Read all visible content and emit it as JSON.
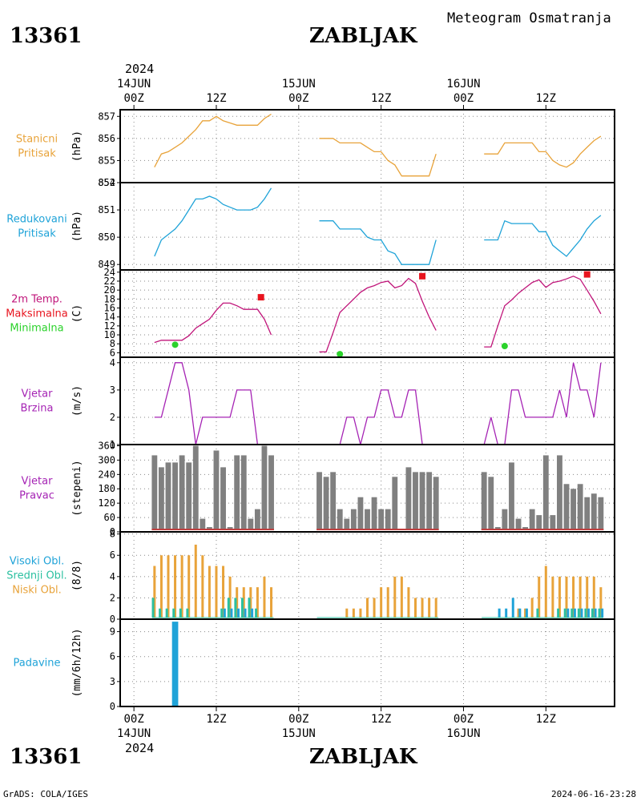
{
  "header": {
    "station_id": "13361",
    "station_name": "ZABLJAK",
    "subtitle": "Meteogram Osmatranja",
    "year": "2024"
  },
  "footer": {
    "credit": "GrADS: COLA/IGES",
    "timestamp": "2024-06-16-23:28"
  },
  "time_axis": {
    "top": [
      {
        "label": "14JUN",
        "sub": "00Z"
      },
      {
        "label": "",
        "sub": "12Z"
      },
      {
        "label": "15JUN",
        "sub": "00Z"
      },
      {
        "label": "",
        "sub": "12Z"
      },
      {
        "label": "16JUN",
        "sub": "00Z"
      },
      {
        "label": "",
        "sub": "12Z"
      }
    ],
    "bottom": [
      {
        "label": "00Z",
        "sub": "14JUN"
      },
      {
        "label": "12Z",
        "sub": ""
      },
      {
        "label": "00Z",
        "sub": "15JUN"
      },
      {
        "label": "12Z",
        "sub": ""
      },
      {
        "label": "00Z",
        "sub": "16JUN"
      },
      {
        "label": "12Z",
        "sub": ""
      }
    ],
    "x_range_hours": [
      -2,
      70
    ]
  },
  "colors": {
    "pressure": "#e8a33a",
    "reduced": "#1fa3d8",
    "temp": "#c0157a",
    "max": "#e8141e",
    "min": "#2bd22b",
    "wind": "#a523b4",
    "winddir": "#808080",
    "winddir_base": "#c04040",
    "cloud_low": "#e8a33a",
    "cloud_mid": "#2bc0a0",
    "cloud_high": "#1fa3d8",
    "precip": "#1fa3d8"
  },
  "chart_data": [
    {
      "type": "line",
      "panel": "station_pressure",
      "labels": [
        "Stanicni",
        "Pritisak"
      ],
      "ylabel": "(hPa)",
      "ylim": [
        854,
        857.3
      ],
      "yticks": [
        "857",
        "856",
        "855",
        "854"
      ],
      "series": [
        {
          "x": [
            3,
            4,
            5,
            6,
            7,
            8,
            9,
            10,
            11,
            12,
            13,
            14,
            15,
            16,
            17,
            18,
            19,
            20
          ],
          "y": [
            854.7,
            855.3,
            855.4,
            855.6,
            855.8,
            856.1,
            856.4,
            856.8,
            856.8,
            857.0,
            856.8,
            856.7,
            856.6,
            856.6,
            856.6,
            856.6,
            856.9,
            857.1
          ]
        },
        {
          "x": [
            27,
            28,
            29,
            30,
            31,
            32,
            33,
            34,
            35,
            36,
            37,
            38,
            39,
            40,
            41,
            42,
            43,
            44
          ],
          "y": [
            856.0,
            856.0,
            856.0,
            855.8,
            855.8,
            855.8,
            855.8,
            855.6,
            855.4,
            855.4,
            855.0,
            854.8,
            854.3,
            854.3,
            854.3,
            854.3,
            854.3,
            855.3
          ]
        },
        {
          "x": [
            51,
            52,
            53,
            54,
            55,
            56,
            57,
            58,
            59,
            60,
            61,
            62,
            63,
            64,
            65,
            66,
            67,
            68
          ],
          "y": [
            855.3,
            855.3,
            855.3,
            855.8,
            855.8,
            855.8,
            855.8,
            855.8,
            855.4,
            855.4,
            855.0,
            854.8,
            854.7,
            854.9,
            855.3,
            855.6,
            855.9,
            856.1
          ]
        }
      ]
    },
    {
      "type": "line",
      "panel": "reduced_pressure",
      "labels": [
        "Redukovani",
        "Pritisak"
      ],
      "ylabel": "(hPa)",
      "ylim": [
        848.8,
        852
      ],
      "yticks": [
        "852",
        "851",
        "850",
        "849"
      ],
      "series": [
        {
          "x": [
            3,
            4,
            5,
            6,
            7,
            8,
            9,
            10,
            11,
            12,
            13,
            14,
            15,
            16,
            17,
            18,
            19,
            20
          ],
          "y": [
            849.3,
            849.9,
            850.1,
            850.3,
            850.6,
            851.0,
            851.4,
            851.4,
            851.5,
            851.4,
            851.2,
            851.1,
            851.0,
            851.0,
            851.0,
            851.1,
            851.4,
            851.8
          ]
        },
        {
          "x": [
            27,
            28,
            29,
            30,
            31,
            32,
            33,
            34,
            35,
            36,
            37,
            38,
            39,
            40,
            41,
            42,
            43,
            44
          ],
          "y": [
            850.6,
            850.6,
            850.6,
            850.3,
            850.3,
            850.3,
            850.3,
            850.0,
            849.9,
            849.9,
            849.5,
            849.4,
            849.0,
            849.0,
            849.0,
            849.0,
            849.0,
            849.9
          ]
        },
        {
          "x": [
            51,
            52,
            53,
            54,
            55,
            56,
            57,
            58,
            59,
            60,
            61,
            62,
            63,
            64,
            65,
            66,
            67,
            68
          ],
          "y": [
            849.9,
            849.9,
            849.9,
            850.6,
            850.5,
            850.5,
            850.5,
            850.5,
            850.2,
            850.2,
            849.7,
            849.5,
            849.3,
            849.6,
            849.9,
            850.3,
            850.6,
            850.8
          ]
        }
      ]
    },
    {
      "type": "line",
      "panel": "temperature_2m",
      "labels": [
        "2m Temp.",
        "Maksimalna",
        "Minimalna"
      ],
      "ylabel": "(C)",
      "ylim": [
        5,
        24.5
      ],
      "yticks": [
        "24",
        "22",
        "20",
        "18",
        "16",
        "14",
        "12",
        "10",
        "8",
        "6"
      ],
      "series": [
        {
          "name": "2m Temp.",
          "x": [
            3,
            4,
            5,
            6,
            7,
            8,
            9,
            10,
            11,
            12,
            13,
            14,
            15,
            16,
            17,
            18,
            19,
            20
          ],
          "y": [
            8.3,
            8.8,
            8.8,
            8.8,
            8.8,
            9.8,
            11.5,
            12.5,
            13.5,
            15.5,
            17.1,
            17.1,
            16.5,
            15.7,
            15.7,
            15.7,
            13.5,
            10.0
          ]
        },
        {
          "name": "2m Temp.",
          "x": [
            27,
            28,
            29,
            30,
            31,
            32,
            33,
            34,
            35,
            36,
            37,
            38,
            39,
            40,
            41,
            42,
            43,
            44
          ],
          "y": [
            6.2,
            6.2,
            10.5,
            15.0,
            16.5,
            18.0,
            19.5,
            20.5,
            21.0,
            21.7,
            22.0,
            20.5,
            21.0,
            22.6,
            21.5,
            17.5,
            14.0,
            11.0
          ]
        },
        {
          "name": "2m Temp.",
          "x": [
            51,
            52,
            53,
            54,
            55,
            56,
            57,
            58,
            59,
            60,
            61,
            62,
            63,
            64,
            65,
            66,
            67,
            68
          ],
          "y": [
            7.3,
            7.3,
            12.0,
            16.5,
            17.8,
            19.3,
            20.5,
            21.7,
            22.3,
            20.6,
            21.7,
            22.0,
            22.5,
            23.1,
            22.4,
            20.0,
            17.5,
            14.7
          ]
        }
      ],
      "max_points": [
        {
          "x": 18.5,
          "y": 18.4
        },
        {
          "x": 42,
          "y": 23.1
        },
        {
          "x": 66,
          "y": 23.5
        }
      ],
      "min_points": [
        {
          "x": 6,
          "y": 7.8
        },
        {
          "x": 30,
          "y": 5.7
        },
        {
          "x": 54,
          "y": 7.5
        }
      ]
    },
    {
      "type": "line",
      "panel": "wind_speed",
      "labels": [
        "Vjetar",
        "Brzina"
      ],
      "ylabel": "(m/s)",
      "ylim": [
        1,
        4.2
      ],
      "yticks": [
        "4",
        "3",
        "2",
        "1"
      ],
      "series": [
        {
          "x": [
            3,
            4,
            5,
            6,
            7,
            8,
            9,
            10,
            11,
            12,
            13,
            14,
            15,
            16,
            17,
            18,
            19,
            20
          ],
          "y": [
            2,
            2,
            3,
            4,
            4,
            3,
            1,
            2,
            2,
            2,
            2,
            2,
            3,
            3,
            3,
            1,
            1,
            1
          ]
        },
        {
          "x": [
            27,
            28,
            29,
            30,
            31,
            32,
            33,
            34,
            35,
            36,
            37,
            38,
            39,
            40,
            41,
            42,
            43,
            44
          ],
          "y": [
            1,
            1,
            1,
            1,
            2,
            2,
            1,
            2,
            2,
            3,
            3,
            2,
            2,
            3,
            3,
            1,
            1,
            1
          ]
        },
        {
          "x": [
            51,
            52,
            53,
            54,
            55,
            56,
            57,
            58,
            59,
            60,
            61,
            62,
            63,
            64,
            65,
            66,
            67,
            68
          ],
          "y": [
            1,
            2,
            1,
            1,
            3,
            3,
            2,
            2,
            2,
            2,
            2,
            3,
            2,
            4,
            3,
            3,
            2,
            4
          ]
        }
      ]
    },
    {
      "type": "bar",
      "panel": "wind_direction",
      "labels": [
        "Vjetar",
        "Pravac"
      ],
      "ylabel": "(stepeni)",
      "ylim": [
        0,
        365
      ],
      "yticks": [
        "360",
        "300",
        "240",
        "180",
        "120",
        "60",
        "0"
      ],
      "x": [
        3,
        4,
        5,
        6,
        7,
        8,
        9,
        10,
        11,
        12,
        13,
        14,
        15,
        16,
        17,
        18,
        19,
        20,
        27,
        28,
        29,
        30,
        31,
        32,
        33,
        34,
        35,
        36,
        37,
        38,
        39,
        40,
        41,
        42,
        43,
        44,
        51,
        52,
        53,
        54,
        55,
        56,
        57,
        58,
        59,
        60,
        61,
        62,
        63,
        64,
        65,
        66,
        67,
        68
      ],
      "values": [
        320,
        270,
        290,
        290,
        320,
        290,
        360,
        55,
        20,
        340,
        270,
        20,
        320,
        320,
        55,
        95,
        360,
        320,
        250,
        230,
        250,
        95,
        55,
        95,
        145,
        95,
        145,
        95,
        95,
        230,
        0,
        270,
        250,
        250,
        250,
        230,
        250,
        230,
        20,
        95,
        290,
        55,
        20,
        95,
        70,
        320,
        70,
        320,
        200,
        180,
        200,
        145,
        160,
        145
      ]
    },
    {
      "type": "bar",
      "panel": "cloud_cover",
      "labels": [
        "Visoki Obl.",
        "Srednji Obl.",
        "Niski Obl."
      ],
      "ylabel": "(8/8)",
      "ylim": [
        0,
        8.2
      ],
      "yticks": [
        "8",
        "6",
        "4",
        "2",
        "0"
      ],
      "x": [
        3,
        4,
        5,
        6,
        7,
        8,
        9,
        10,
        11,
        12,
        13,
        14,
        15,
        16,
        17,
        18,
        19,
        20,
        27,
        28,
        29,
        30,
        31,
        32,
        33,
        34,
        35,
        36,
        37,
        38,
        39,
        40,
        41,
        42,
        43,
        44,
        51,
        52,
        53,
        54,
        55,
        56,
        57,
        58,
        59,
        60,
        61,
        62,
        63,
        64,
        65,
        66,
        67,
        68
      ],
      "series": [
        {
          "name": "Niski Obl.",
          "values": [
            5,
            6,
            6,
            6,
            6,
            6,
            7,
            6,
            5,
            5,
            5,
            4,
            3,
            3,
            3,
            3,
            4,
            3,
            0,
            0,
            0,
            0,
            1,
            1,
            1,
            2,
            2,
            3,
            3,
            4,
            4,
            3,
            2,
            2,
            2,
            2,
            0,
            0,
            0,
            0,
            0,
            1,
            1,
            2,
            4,
            5,
            4,
            4,
            4,
            4,
            4,
            4,
            4,
            3
          ]
        },
        {
          "name": "Srednji Obl.",
          "values": [
            2,
            1,
            1,
            1,
            1,
            1,
            0,
            0,
            0,
            0,
            1,
            2,
            2,
            2,
            2,
            1,
            0,
            0,
            0,
            0,
            0,
            0,
            0,
            0,
            0,
            0,
            0,
            0,
            0,
            0,
            0,
            0,
            0,
            0,
            0,
            0,
            0,
            0,
            0,
            0,
            0,
            0,
            0,
            0,
            1,
            0,
            0,
            1,
            1,
            1,
            1,
            1,
            1,
            1
          ]
        },
        {
          "name": "Visoki Obl.",
          "values": [
            0,
            0,
            0,
            0,
            0,
            0,
            0,
            0,
            0,
            0,
            1,
            1,
            1,
            1,
            1,
            0,
            0,
            0,
            0,
            0,
            0,
            0,
            0,
            0,
            0,
            0,
            0,
            0,
            0,
            0,
            0,
            0,
            0,
            0,
            0,
            0,
            0,
            0,
            1,
            1,
            2,
            1,
            1,
            0,
            0,
            0,
            0,
            0,
            1,
            1,
            1,
            1,
            1,
            1
          ]
        }
      ]
    },
    {
      "type": "bar",
      "panel": "precipitation",
      "labels": [
        "Padavine"
      ],
      "ylabel": "(mm/6h/12h)",
      "ylim": [
        0,
        10.5
      ],
      "yticks": [
        "9",
        "6",
        "3",
        "0"
      ],
      "bars": [
        {
          "x": 6,
          "value": 10.2
        }
      ],
      "trace_ranges": [
        [
          3,
          20
        ],
        [
          27,
          44
        ],
        [
          51,
          68
        ]
      ]
    }
  ]
}
